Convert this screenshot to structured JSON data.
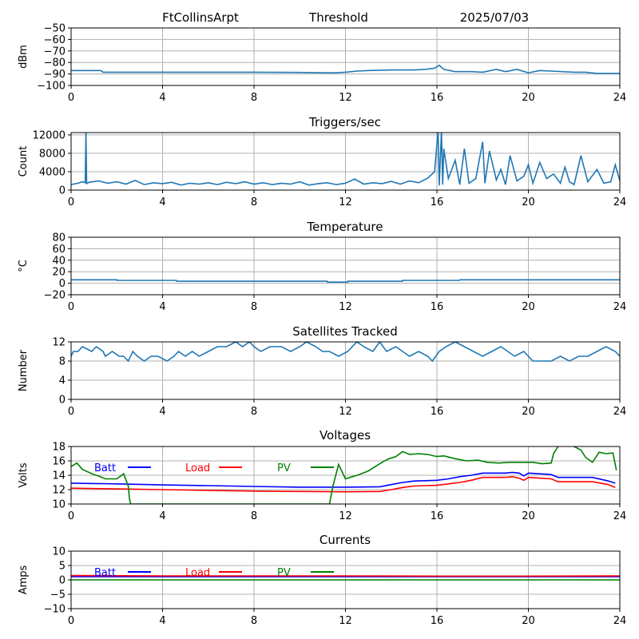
{
  "header": {
    "station": "FtCollinsArpt",
    "mode": "Threshold",
    "date": "2025/07/03"
  },
  "colors": {
    "series": "#1f77b4",
    "batt": "#0000ff",
    "load": "#ff0000",
    "pv": "#008000"
  },
  "chart_data": [
    {
      "id": "threshold",
      "type": "line",
      "title": "",
      "ylabel": "dBm",
      "xlim": [
        0,
        24
      ],
      "ylim": [
        -100,
        -50
      ],
      "xticks": [
        0,
        4,
        8,
        12,
        16,
        20,
        24
      ],
      "yticks": [
        -100,
        -90,
        -80,
        -70,
        -60,
        -50
      ],
      "ytick_labels": [
        "−100",
        "−90",
        "−80",
        "−70",
        "−60",
        "−50"
      ],
      "series": [
        {
          "color": "series",
          "x": [
            0,
            1.3,
            1.4,
            4,
            8,
            10,
            11.5,
            12,
            12.5,
            13,
            14,
            15,
            15.5,
            15.9,
            16.1,
            16.3,
            16.8,
            17.5,
            18,
            18.6,
            19,
            19.5,
            20,
            20.5,
            21,
            22,
            22.5,
            23,
            24
          ],
          "y": [
            -87,
            -87,
            -88.5,
            -88.5,
            -88.5,
            -88.7,
            -89,
            -88.5,
            -87.5,
            -87,
            -86.5,
            -86.5,
            -86,
            -85,
            -82.5,
            -86,
            -88,
            -88,
            -88.5,
            -86,
            -88,
            -86,
            -89,
            -87,
            -87.5,
            -88.5,
            -88.5,
            -89.5,
            -89.5
          ]
        }
      ]
    },
    {
      "id": "triggers",
      "type": "line",
      "title": "Triggers/sec",
      "ylabel": "Count",
      "xlim": [
        0,
        24
      ],
      "ylim": [
        0,
        12500
      ],
      "xticks": [
        0,
        4,
        8,
        12,
        16,
        20,
        24
      ],
      "yticks": [
        0,
        4000,
        8000,
        12000
      ],
      "ytick_labels": [
        "0",
        "4000",
        "8000",
        "12000"
      ],
      "series": [
        {
          "color": "series",
          "x": [
            0,
            0.3,
            0.5,
            0.62,
            0.65,
            0.68,
            0.8,
            1.2,
            1.6,
            2,
            2.4,
            2.8,
            3.2,
            3.6,
            4,
            4.4,
            4.8,
            5.2,
            5.6,
            6,
            6.4,
            6.8,
            7.2,
            7.6,
            8,
            8.4,
            8.8,
            9.2,
            9.6,
            10,
            10.4,
            10.8,
            11.2,
            11.6,
            12,
            12.4,
            12.8,
            13.2,
            13.6,
            14,
            14.4,
            14.8,
            15.2,
            15.6,
            15.9,
            16.05,
            16.1,
            16.2,
            16.25,
            16.3,
            16.5,
            16.8,
            17,
            17.2,
            17.4,
            17.7,
            18,
            18.1,
            18.3,
            18.6,
            18.8,
            19,
            19.2,
            19.5,
            19.8,
            20,
            20.2,
            20.5,
            20.8,
            21.1,
            21.4,
            21.6,
            21.8,
            22,
            22.3,
            22.6,
            23,
            23.3,
            23.6,
            23.8,
            24
          ],
          "y": [
            1200,
            1500,
            1800,
            1600,
            12500,
            1400,
            1700,
            2000,
            1500,
            1800,
            1300,
            2100,
            1200,
            1600,
            1400,
            1700,
            1100,
            1500,
            1300,
            1600,
            1200,
            1700,
            1400,
            1800,
            1300,
            1600,
            1200,
            1500,
            1300,
            1800,
            1100,
            1400,
            1600,
            1200,
            1500,
            2400,
            1300,
            1600,
            1400,
            1900,
            1300,
            2000,
            1600,
            2600,
            4000,
            13000,
            1000,
            13000,
            1200,
            9000,
            2500,
            6500,
            1200,
            9000,
            1500,
            2500,
            10500,
            1500,
            8500,
            2200,
            4500,
            1200,
            7500,
            2000,
            3000,
            5500,
            1500,
            6000,
            2500,
            3500,
            1500,
            5000,
            1800,
            1200,
            7500,
            1800,
            4500,
            1500,
            1800,
            5500,
            2000
          ]
        }
      ]
    },
    {
      "id": "temperature",
      "type": "line",
      "title": "Temperature",
      "ylabel": "°C",
      "xlim": [
        0,
        24
      ],
      "ylim": [
        -20,
        80
      ],
      "xticks": [
        0,
        4,
        8,
        12,
        16,
        20,
        24
      ],
      "yticks": [
        -20,
        0,
        20,
        40,
        60,
        80
      ],
      "ytick_labels": [
        "−20",
        "0",
        "20",
        "40",
        "60",
        "80"
      ],
      "series": [
        {
          "color": "series",
          "x": [
            0,
            2,
            2.01,
            4.6,
            4.61,
            11.2,
            11.21,
            12.1,
            12.11,
            14.5,
            14.51,
            17,
            17.01,
            24
          ],
          "y": [
            6,
            6,
            5,
            5,
            3.5,
            3.5,
            2,
            2,
            3.5,
            3.5,
            5,
            5,
            6,
            6
          ]
        }
      ]
    },
    {
      "id": "satellites",
      "type": "line",
      "title": "Satellites Tracked",
      "ylabel": "Number",
      "xlim": [
        0,
        24
      ],
      "ylim": [
        0,
        12
      ],
      "xticks": [
        0,
        4,
        8,
        12,
        16,
        20,
        24
      ],
      "yticks": [
        0,
        4,
        8,
        12
      ],
      "ytick_labels": [
        "0",
        "4",
        "8",
        "12"
      ],
      "series": [
        {
          "color": "series",
          "x": [
            0,
            0.1,
            0.3,
            0.5,
            0.9,
            1.1,
            1.4,
            1.5,
            1.8,
            2.1,
            2.3,
            2.5,
            2.7,
            2.9,
            3.2,
            3.5,
            3.8,
            4.2,
            4.5,
            4.7,
            5,
            5.3,
            5.6,
            6,
            6.4,
            6.8,
            7.2,
            7.5,
            7.8,
            8,
            8.3,
            8.7,
            9.2,
            9.6,
            10,
            10.3,
            10.7,
            11,
            11.3,
            11.7,
            12.1,
            12.5,
            12.8,
            13.2,
            13.5,
            13.8,
            14.2,
            14.5,
            14.8,
            15.2,
            15.6,
            15.8,
            16.1,
            16.4,
            16.8,
            17.2,
            17.6,
            18,
            18.4,
            18.8,
            19.1,
            19.4,
            19.8,
            20.2,
            20.6,
            21,
            21.4,
            21.8,
            22.2,
            22.6,
            23,
            23.4,
            23.8,
            24
          ],
          "y": [
            9,
            10,
            10,
            11,
            10,
            11,
            10,
            9,
            10,
            9,
            9,
            8,
            10,
            9,
            8,
            9,
            9,
            8,
            9,
            10,
            9,
            10,
            9,
            10,
            11,
            11,
            12,
            11,
            12,
            11,
            10,
            11,
            11,
            10,
            11,
            12,
            11,
            10,
            10,
            9,
            10,
            12,
            11,
            10,
            12,
            10,
            11,
            10,
            9,
            10,
            9,
            8,
            10,
            11,
            12,
            11,
            10,
            9,
            10,
            11,
            10,
            9,
            10,
            8,
            8,
            8,
            9,
            8,
            9,
            9,
            10,
            11,
            10,
            9
          ]
        }
      ]
    },
    {
      "id": "voltages",
      "type": "line",
      "title": "Voltages",
      "ylabel": "Volts",
      "xlim": [
        0,
        24
      ],
      "ylim": [
        10,
        18
      ],
      "xticks": [
        0,
        4,
        8,
        12,
        16,
        20,
        24
      ],
      "yticks": [
        10,
        12,
        14,
        16,
        18
      ],
      "ytick_labels": [
        "10",
        "12",
        "14",
        "16",
        "18"
      ],
      "legend": [
        "Batt",
        "Load",
        "PV"
      ],
      "series": [
        {
          "name": "Batt",
          "color": "batt",
          "x": [
            0,
            2,
            4,
            6,
            8,
            10,
            12,
            13.5,
            14,
            14.5,
            15,
            15.5,
            16,
            16.5,
            17,
            17.5,
            18,
            18.5,
            19,
            19.3,
            19.6,
            19.8,
            20,
            20.5,
            21,
            21.3,
            22,
            22.8,
            23.5,
            23.8
          ],
          "y": [
            12.9,
            12.8,
            12.65,
            12.55,
            12.45,
            12.35,
            12.35,
            12.4,
            12.7,
            13.0,
            13.2,
            13.25,
            13.3,
            13.5,
            13.8,
            14.0,
            14.3,
            14.3,
            14.3,
            14.4,
            14.3,
            13.9,
            14.3,
            14.2,
            14.1,
            13.7,
            13.7,
            13.7,
            13.2,
            12.9
          ]
        },
        {
          "name": "Load",
          "color": "load",
          "x": [
            0,
            2,
            4,
            6,
            8,
            10,
            12,
            13.5,
            14,
            14.5,
            15,
            15.5,
            16,
            16.5,
            17,
            17.5,
            18,
            18.5,
            19,
            19.3,
            19.6,
            19.8,
            20,
            20.5,
            21,
            21.3,
            22,
            22.8,
            23.5,
            23.8
          ],
          "y": [
            12.2,
            12.1,
            12.0,
            11.9,
            11.8,
            11.75,
            11.7,
            11.75,
            12.0,
            12.3,
            12.5,
            12.55,
            12.6,
            12.8,
            13.0,
            13.3,
            13.7,
            13.7,
            13.7,
            13.8,
            13.6,
            13.3,
            13.7,
            13.6,
            13.5,
            13.1,
            13.1,
            13.1,
            12.7,
            12.3
          ]
        },
        {
          "name": "PV",
          "color": "pv",
          "x": [
            0,
            0.25,
            0.5,
            1,
            1.2,
            1.5,
            2,
            2.3,
            2.5,
            2.55,
            2.6,
            2.62,
            11.3,
            11.45,
            11.7,
            12,
            12.3,
            12.6,
            13,
            13.3,
            13.6,
            13.9,
            14.2,
            14.5,
            14.8,
            15.2,
            15.6,
            16,
            16.3,
            16.8,
            17.3,
            17.8,
            18.2,
            18.7,
            19.2,
            19.7,
            20.2,
            20.6,
            21,
            21.1,
            21.3,
            21.6,
            22,
            22.3,
            22.5,
            22.8,
            23.1,
            23.4,
            23.7,
            23.85
          ],
          "y": [
            15.2,
            15.7,
            14.8,
            14.1,
            13.9,
            13.5,
            13.5,
            14.2,
            12.5,
            10.8,
            10.0,
            10.0,
            10.0,
            12.5,
            15.5,
            13.5,
            13.8,
            14.1,
            14.6,
            15.2,
            15.8,
            16.3,
            16.6,
            17.3,
            16.9,
            17.0,
            16.9,
            16.6,
            16.7,
            16.3,
            16.0,
            16.1,
            15.8,
            15.7,
            15.8,
            15.8,
            15.8,
            15.6,
            15.7,
            17.0,
            18.0,
            18.2,
            18.0,
            17.5,
            16.5,
            15.8,
            17.2,
            17.0,
            17.1,
            14.7
          ]
        }
      ]
    },
    {
      "id": "currents",
      "type": "line",
      "title": "Currents",
      "ylabel": "Amps",
      "xlim": [
        0,
        24
      ],
      "ylim": [
        -10,
        10
      ],
      "xticks": [
        0,
        4,
        8,
        12,
        16,
        20,
        24
      ],
      "yticks": [
        -10,
        -5,
        0,
        5,
        10
      ],
      "ytick_labels": [
        "−10",
        "−5",
        "0",
        "5",
        "10"
      ],
      "legend": [
        "Batt",
        "Load",
        "PV"
      ],
      "series": [
        {
          "name": "Batt",
          "color": "batt",
          "x": [
            0,
            24
          ],
          "y": [
            1.1,
            1.1
          ]
        },
        {
          "name": "Load",
          "color": "load",
          "x": [
            0,
            4,
            8,
            12,
            16,
            20,
            24
          ],
          "y": [
            1.5,
            1.4,
            1.4,
            1.4,
            1.3,
            1.3,
            1.4
          ]
        },
        {
          "name": "PV",
          "color": "pv",
          "x": [
            0,
            24
          ],
          "y": [
            0,
            0
          ]
        }
      ]
    }
  ]
}
